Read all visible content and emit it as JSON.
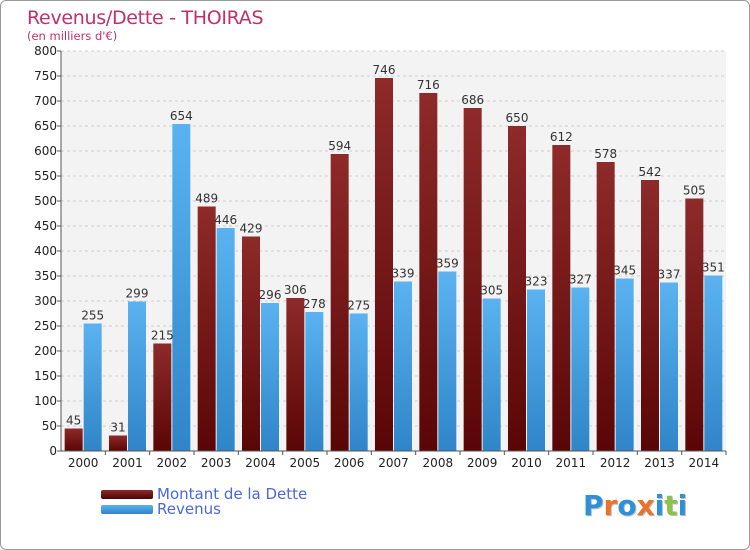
{
  "header": {
    "title": "Revenus/Dette - THOIRAS",
    "subtitle": "(en milliers d'€)"
  },
  "chart_data": {
    "type": "bar",
    "categories": [
      "2000",
      "2001",
      "2002",
      "2003",
      "2004",
      "2005",
      "2006",
      "2007",
      "2008",
      "2009",
      "2010",
      "2011",
      "2012",
      "2013",
      "2014"
    ],
    "series": [
      {
        "name": "Montant de la Dette",
        "color": "#7a1818",
        "values": [
          45,
          31,
          215,
          489,
          429,
          306,
          594,
          746,
          716,
          686,
          650,
          612,
          578,
          542,
          505
        ]
      },
      {
        "name": "Revenus",
        "color": "#3f9de0",
        "values": [
          255,
          299,
          654,
          446,
          296,
          278,
          275,
          339,
          359,
          305,
          323,
          327,
          345,
          337,
          351
        ]
      }
    ],
    "yticks": [
      "0",
      "50",
      "100",
      "150",
      "200",
      "250",
      "300",
      "350",
      "400",
      "450",
      "500",
      "550",
      "600",
      "650",
      "700",
      "750",
      "800"
    ],
    "ylim": [
      0,
      800
    ],
    "grid": true,
    "legend_position": "bottom-left"
  },
  "logo": {
    "letters": [
      "P",
      "r",
      "o",
      "x",
      "i",
      "t",
      "i"
    ]
  }
}
